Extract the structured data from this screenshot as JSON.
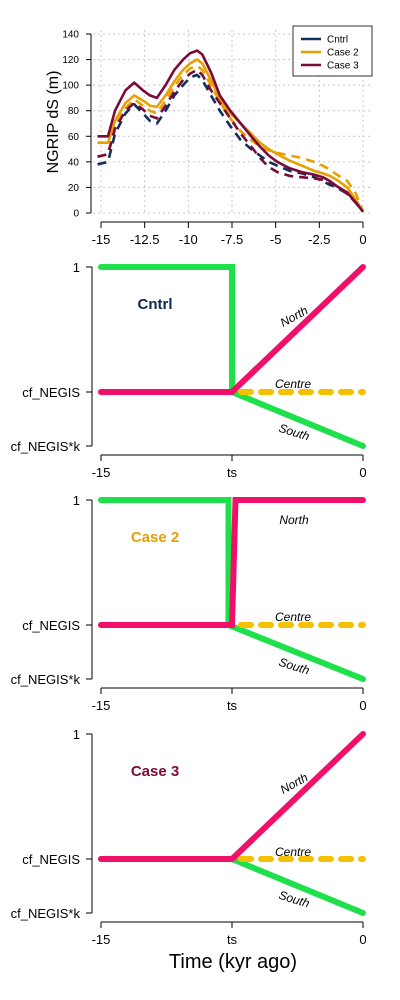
{
  "chart_data": [
    {
      "type": "line",
      "ylabel": "NGRIP dS (m)",
      "xlim": [
        -15.5,
        0.5
      ],
      "ylim": [
        0,
        140
      ],
      "x_ticks": [
        -15,
        -12.5,
        -10,
        -7.5,
        -5,
        -2.5,
        0
      ],
      "x_tick_labels": [
        "-15",
        "-12.5",
        "-10",
        "-7.5",
        "-5",
        "-2.5",
        "0"
      ],
      "y_ticks": [
        0,
        20,
        40,
        60,
        80,
        100,
        120,
        140
      ],
      "y_tick_labels": [
        "0",
        "20",
        "40",
        "60",
        "80",
        "100",
        "120",
        "140"
      ],
      "grid": true,
      "legend_position": "top-right",
      "colors": {
        "Cntrl": "#10305a",
        "Case 2": "#e8a000",
        "Case 3": "#7a0a3a"
      },
      "series": [
        {
          "name": "Cntrl",
          "line_style": "dashed",
          "x": [
            -15.2,
            -14.6,
            -14.2,
            -13.6,
            -13.1,
            -12.6,
            -12.2,
            -11.8,
            -11.3,
            -10.8,
            -10.3,
            -9.9,
            -9.5,
            -9.2,
            -8.7,
            -8.2,
            -7.6,
            -7.0,
            -6.4,
            -5.9,
            -5.4,
            -4.9,
            -4.2,
            -3.5,
            -2.8,
            -2.3,
            -1.9,
            -1.5,
            -0.9,
            -0.4,
            0
          ],
          "values": [
            38,
            40,
            62,
            78,
            85,
            78,
            72,
            70,
            80,
            92,
            100,
            106,
            108,
            104,
            92,
            80,
            68,
            57,
            50,
            45,
            40,
            37,
            33,
            31,
            28,
            25,
            22,
            20,
            15,
            8,
            1
          ]
        },
        {
          "name": "Case 2",
          "line_style": "solid",
          "x": [
            -15.2,
            -14.6,
            -14.2,
            -13.6,
            -13.1,
            -12.6,
            -12.2,
            -11.8,
            -11.3,
            -10.8,
            -10.3,
            -9.9,
            -9.5,
            -9.2,
            -8.7,
            -8.2,
            -7.6,
            -7.0,
            -6.4,
            -5.9,
            -5.4,
            -4.9,
            -4.2,
            -3.5,
            -2.8,
            -2.3,
            -1.9,
            -1.5,
            -0.9,
            -0.4,
            0
          ],
          "values": [
            55,
            55,
            72,
            86,
            92,
            88,
            84,
            83,
            92,
            103,
            112,
            117,
            120,
            117,
            104,
            89,
            78,
            70,
            62,
            55,
            50,
            46,
            41,
            37,
            33,
            31,
            29,
            26,
            20,
            10,
            1
          ]
        },
        {
          "name": "Case 2",
          "line_style": "dashed",
          "x": [
            -15.2,
            -14.6,
            -14.2,
            -13.6,
            -13.1,
            -12.6,
            -12.2,
            -11.8,
            -11.3,
            -10.8,
            -10.3,
            -9.9,
            -9.5,
            -9.2,
            -8.7,
            -8.2,
            -7.6,
            -7.0,
            -6.4,
            -5.9,
            -5.4,
            -4.9,
            -4.2,
            -3.5,
            -2.8,
            -2.3,
            -1.9,
            -1.5,
            -0.9,
            -0.4,
            0
          ],
          "values": [
            44,
            46,
            68,
            82,
            89,
            84,
            80,
            78,
            88,
            99,
            108,
            113,
            115,
            112,
            100,
            87,
            74,
            64,
            57,
            52,
            49,
            47,
            45,
            43,
            40,
            37,
            34,
            30,
            25,
            15,
            1
          ]
        },
        {
          "name": "Case 3",
          "line_style": "solid",
          "x": [
            -15.2,
            -14.6,
            -14.2,
            -13.6,
            -13.1,
            -12.6,
            -12.2,
            -11.8,
            -11.3,
            -10.8,
            -10.3,
            -9.9,
            -9.5,
            -9.2,
            -8.7,
            -8.2,
            -7.6,
            -7.0,
            -6.4,
            -5.9,
            -5.4,
            -4.9,
            -4.2,
            -3.5,
            -2.8,
            -2.3,
            -1.9,
            -1.5,
            -0.9,
            -0.4,
            0
          ],
          "values": [
            60,
            60,
            80,
            96,
            102,
            96,
            92,
            90,
            100,
            112,
            120,
            125,
            127,
            124,
            110,
            92,
            80,
            70,
            60,
            52,
            45,
            40,
            35,
            32,
            30,
            28,
            25,
            21,
            16,
            8,
            1
          ]
        },
        {
          "name": "Case 3",
          "line_style": "dashed",
          "x": [
            -15.2,
            -14.6,
            -14.2,
            -13.6,
            -13.1,
            -12.6,
            -12.2,
            -11.8,
            -11.3,
            -10.8,
            -10.3,
            -9.9,
            -9.5,
            -9.2,
            -8.7,
            -8.2,
            -7.6,
            -7.0,
            -6.4,
            -5.9,
            -5.4,
            -4.9,
            -4.2,
            -3.5,
            -2.8,
            -2.3,
            -1.9,
            -1.5,
            -0.9,
            -0.4,
            0
          ],
          "values": [
            44,
            46,
            66,
            80,
            86,
            81,
            76,
            74,
            84,
            95,
            104,
            109,
            112,
            108,
            96,
            86,
            74,
            62,
            52,
            43,
            36,
            32,
            29,
            28,
            27,
            26,
            24,
            21,
            15,
            8,
            1
          ]
        }
      ]
    },
    {
      "type": "line",
      "case_label": "Cntrl",
      "case_color": "#0d2a4d",
      "x_ticks": [
        -15,
        -7.5,
        0
      ],
      "x_tick_labels": [
        "-15",
        "ts",
        "0"
      ],
      "y_tick_labels": [
        "1",
        "cf_NEGIS",
        "cf_NEGIS*k"
      ],
      "y_levels": [
        1,
        0.6,
        0.43
      ],
      "annotations": [
        "North",
        "Centre",
        "South"
      ],
      "colors": {
        "green": "#1ee04a",
        "pink": "#f0106a",
        "orange": "#f5c000"
      },
      "series": [
        {
          "color_key": "green",
          "line_style": "solid",
          "x": [
            -15,
            -7.5,
            -7.5,
            0
          ],
          "values": [
            1,
            1,
            0.6,
            0.43
          ]
        },
        {
          "color_key": "orange",
          "line_style": "dashed",
          "x": [
            -15,
            0
          ],
          "values": [
            0.6,
            0.6
          ]
        },
        {
          "color_key": "pink",
          "line_style": "solid",
          "x": [
            -15,
            -7.5,
            0
          ],
          "values": [
            0.6,
            0.6,
            1
          ]
        }
      ]
    },
    {
      "type": "line",
      "case_label": "Case 2",
      "case_color": "#e8a000",
      "x_ticks": [
        -15,
        -7.5,
        0
      ],
      "x_tick_labels": [
        "-15",
        "ts",
        "0"
      ],
      "y_tick_labels": [
        "1",
        "cf_NEGIS",
        "cf_NEGIS*k"
      ],
      "y_levels": [
        1,
        0.6,
        0.43
      ],
      "annotations": [
        "North",
        "Centre",
        "South"
      ],
      "colors": {
        "green": "#1ee04a",
        "pink": "#f0106a",
        "orange": "#f5c000"
      },
      "series": [
        {
          "color_key": "green",
          "line_style": "solid",
          "x": [
            -15,
            -7.7,
            -7.7,
            0
          ],
          "values": [
            1,
            1,
            0.6,
            0.43
          ]
        },
        {
          "color_key": "orange",
          "line_style": "dashed",
          "x": [
            -15,
            0
          ],
          "values": [
            0.6,
            0.6
          ]
        },
        {
          "color_key": "pink",
          "line_style": "solid",
          "x": [
            -15,
            -7.5,
            -7.3,
            0
          ],
          "values": [
            0.6,
            0.6,
            1,
            1
          ]
        }
      ]
    },
    {
      "type": "line",
      "case_label": "Case 3",
      "case_color": "#7a0a3a",
      "x_ticks": [
        -15,
        -7.5,
        0
      ],
      "x_tick_labels": [
        "-15",
        "ts",
        "0"
      ],
      "y_tick_labels": [
        "1",
        "cf_NEGIS",
        "cf_NEGIS*k"
      ],
      "y_levels": [
        1,
        0.6,
        0.43
      ],
      "annotations": [
        "North",
        "Centre",
        "South"
      ],
      "xlabel": "Time (kyr ago)",
      "colors": {
        "green": "#1ee04a",
        "pink": "#f0106a",
        "orange": "#f5c000"
      },
      "series": [
        {
          "color_key": "green",
          "line_style": "solid",
          "x": [
            -15,
            -7.5,
            0
          ],
          "values": [
            0.6,
            0.6,
            0.43
          ]
        },
        {
          "color_key": "orange",
          "line_style": "dashed",
          "x": [
            -15,
            0
          ],
          "values": [
            0.6,
            0.6
          ]
        },
        {
          "color_key": "pink",
          "line_style": "solid",
          "x": [
            -15,
            -7.5,
            0
          ],
          "values": [
            0.6,
            0.6,
            1
          ]
        }
      ]
    }
  ]
}
